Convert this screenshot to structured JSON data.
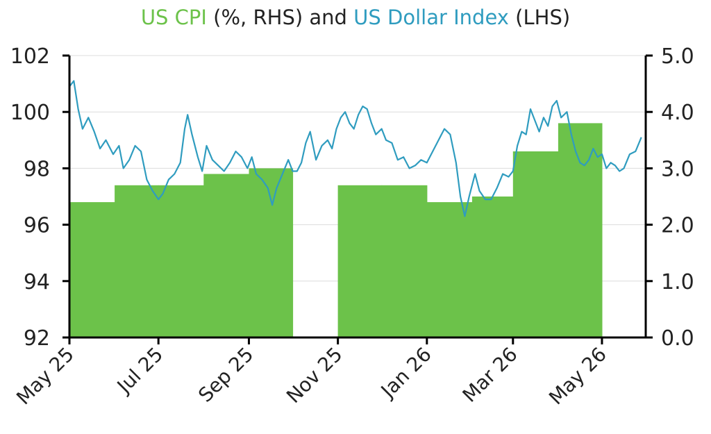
{
  "title": {
    "part1": "US CPI",
    "part2": " (%, RHS) and ",
    "part3": "US Dollar Index",
    "part4": " (LHS)"
  },
  "colors": {
    "cpi": "#6cc24a",
    "dxy": "#2f9cbf",
    "axis": "#000000",
    "grid": "#dcdcdc",
    "text": "#222222"
  },
  "chart_data": {
    "type": "bar+line",
    "title": "US CPI (%, RHS) and US Dollar Index (LHS)",
    "left_axis": {
      "label": "US Dollar Index",
      "ylim": [
        92,
        102
      ],
      "ticks": [
        "92",
        "94",
        "96",
        "98",
        "100",
        "102"
      ]
    },
    "right_axis": {
      "label": "US CPI (%)",
      "ylim": [
        0,
        5
      ],
      "ticks": [
        "0.0",
        "1.0",
        "2.0",
        "3.0",
        "4.0",
        "5.0"
      ]
    },
    "x_ticks": [
      "May 25",
      "Jul 25",
      "Sep 25",
      "Nov 25",
      "Jan 26",
      "Mar 26",
      "May 26"
    ],
    "grid": "horizontal",
    "cpi_bars": [
      {
        "month": "2025-05",
        "value": 2.4
      },
      {
        "month": "2025-06",
        "value": 2.7
      },
      {
        "month": "2025-07",
        "value": 2.7
      },
      {
        "month": "2025-08",
        "value": 2.9
      },
      {
        "month": "2025-09",
        "value": 3.0
      },
      {
        "month": "2025-10",
        "value": null
      },
      {
        "month": "2025-11",
        "value": 2.7
      },
      {
        "month": "2025-12",
        "value": 2.7
      },
      {
        "month": "2026-01",
        "value": 2.4
      },
      {
        "month": "2026-02",
        "value": 2.5
      },
      {
        "month": "2026-03",
        "value": 3.3
      },
      {
        "month": "2026-04",
        "value": 3.8
      }
    ],
    "dxy_series": [
      [
        "2025-05-01",
        100.9
      ],
      [
        "2025-05-04",
        101.1
      ],
      [
        "2025-05-07",
        100.1
      ],
      [
        "2025-05-10",
        99.4
      ],
      [
        "2025-05-14",
        99.8
      ],
      [
        "2025-05-18",
        99.3
      ],
      [
        "2025-05-22",
        98.7
      ],
      [
        "2025-05-26",
        99.0
      ],
      [
        "2025-05-31",
        98.5
      ],
      [
        "2025-06-04",
        98.8
      ],
      [
        "2025-06-07",
        98.0
      ],
      [
        "2025-06-11",
        98.3
      ],
      [
        "2025-06-15",
        98.8
      ],
      [
        "2025-06-19",
        98.6
      ],
      [
        "2025-06-23",
        97.6
      ],
      [
        "2025-06-27",
        97.2
      ],
      [
        "2025-07-01",
        96.9
      ],
      [
        "2025-07-04",
        97.1
      ],
      [
        "2025-07-08",
        97.6
      ],
      [
        "2025-07-12",
        97.8
      ],
      [
        "2025-07-16",
        98.2
      ],
      [
        "2025-07-19",
        99.4
      ],
      [
        "2025-07-21",
        99.9
      ],
      [
        "2025-07-24",
        99.2
      ],
      [
        "2025-07-28",
        98.4
      ],
      [
        "2025-07-31",
        97.9
      ],
      [
        "2025-08-03",
        98.8
      ],
      [
        "2025-08-07",
        98.3
      ],
      [
        "2025-08-11",
        98.1
      ],
      [
        "2025-08-15",
        97.9
      ],
      [
        "2025-08-19",
        98.2
      ],
      [
        "2025-08-23",
        98.6
      ],
      [
        "2025-08-27",
        98.4
      ],
      [
        "2025-08-31",
        98.0
      ],
      [
        "2025-09-03",
        98.4
      ],
      [
        "2025-09-06",
        97.8
      ],
      [
        "2025-09-10",
        97.6
      ],
      [
        "2025-09-14",
        97.3
      ],
      [
        "2025-09-17",
        96.7
      ],
      [
        "2025-09-20",
        97.3
      ],
      [
        "2025-09-24",
        97.8
      ],
      [
        "2025-09-28",
        98.3
      ],
      [
        "2025-10-01",
        97.9
      ],
      [
        "2025-10-04",
        97.9
      ],
      [
        "2025-10-07",
        98.2
      ],
      [
        "2025-10-10",
        98.9
      ],
      [
        "2025-10-13",
        99.3
      ],
      [
        "2025-10-17",
        98.3
      ],
      [
        "2025-10-21",
        98.8
      ],
      [
        "2025-10-25",
        99.0
      ],
      [
        "2025-10-28",
        98.7
      ],
      [
        "2025-10-31",
        99.4
      ],
      [
        "2025-11-03",
        99.8
      ],
      [
        "2025-11-06",
        100.0
      ],
      [
        "2025-11-09",
        99.6
      ],
      [
        "2025-11-12",
        99.4
      ],
      [
        "2025-11-15",
        99.9
      ],
      [
        "2025-11-18",
        100.2
      ],
      [
        "2025-11-21",
        100.1
      ],
      [
        "2025-11-24",
        99.6
      ],
      [
        "2025-11-27",
        99.2
      ],
      [
        "2025-12-01",
        99.4
      ],
      [
        "2025-12-04",
        99.0
      ],
      [
        "2025-12-08",
        98.9
      ],
      [
        "2025-12-12",
        98.3
      ],
      [
        "2025-12-16",
        98.4
      ],
      [
        "2025-12-20",
        98.0
      ],
      [
        "2025-12-24",
        98.1
      ],
      [
        "2025-12-28",
        98.3
      ],
      [
        "2026-01-01",
        98.2
      ],
      [
        "2026-01-05",
        98.6
      ],
      [
        "2026-01-09",
        99.0
      ],
      [
        "2026-01-13",
        99.4
      ],
      [
        "2026-01-17",
        99.2
      ],
      [
        "2026-01-21",
        98.2
      ],
      [
        "2026-01-24",
        97.0
      ],
      [
        "2026-01-27",
        96.3
      ],
      [
        "2026-01-30",
        97.0
      ],
      [
        "2026-02-03",
        97.8
      ],
      [
        "2026-02-06",
        97.2
      ],
      [
        "2026-02-10",
        96.9
      ],
      [
        "2026-02-14",
        96.9
      ],
      [
        "2026-02-18",
        97.3
      ],
      [
        "2026-02-22",
        97.8
      ],
      [
        "2026-02-26",
        97.7
      ],
      [
        "2026-03-01",
        97.9
      ],
      [
        "2026-03-04",
        98.8
      ],
      [
        "2026-03-07",
        99.3
      ],
      [
        "2026-03-10",
        99.2
      ],
      [
        "2026-03-13",
        100.1
      ],
      [
        "2026-03-16",
        99.7
      ],
      [
        "2026-03-19",
        99.3
      ],
      [
        "2026-03-22",
        99.8
      ],
      [
        "2026-03-25",
        99.5
      ],
      [
        "2026-03-28",
        100.2
      ],
      [
        "2026-03-31",
        100.4
      ],
      [
        "2026-04-03",
        99.8
      ],
      [
        "2026-04-07",
        100.0
      ],
      [
        "2026-04-10",
        99.2
      ],
      [
        "2026-04-13",
        98.6
      ],
      [
        "2026-04-16",
        98.2
      ],
      [
        "2026-04-19",
        98.1
      ],
      [
        "2026-04-22",
        98.3
      ],
      [
        "2026-04-25",
        98.7
      ],
      [
        "2026-04-28",
        98.4
      ],
      [
        "2026-05-01",
        98.5
      ],
      [
        "2026-05-04",
        98.0
      ],
      [
        "2026-05-07",
        98.2
      ],
      [
        "2026-05-10",
        98.1
      ],
      [
        "2026-05-13",
        97.9
      ],
      [
        "2026-05-16",
        98.0
      ],
      [
        "2026-05-20",
        98.5
      ],
      [
        "2026-05-24",
        98.6
      ],
      [
        "2026-05-28",
        99.1
      ]
    ]
  }
}
